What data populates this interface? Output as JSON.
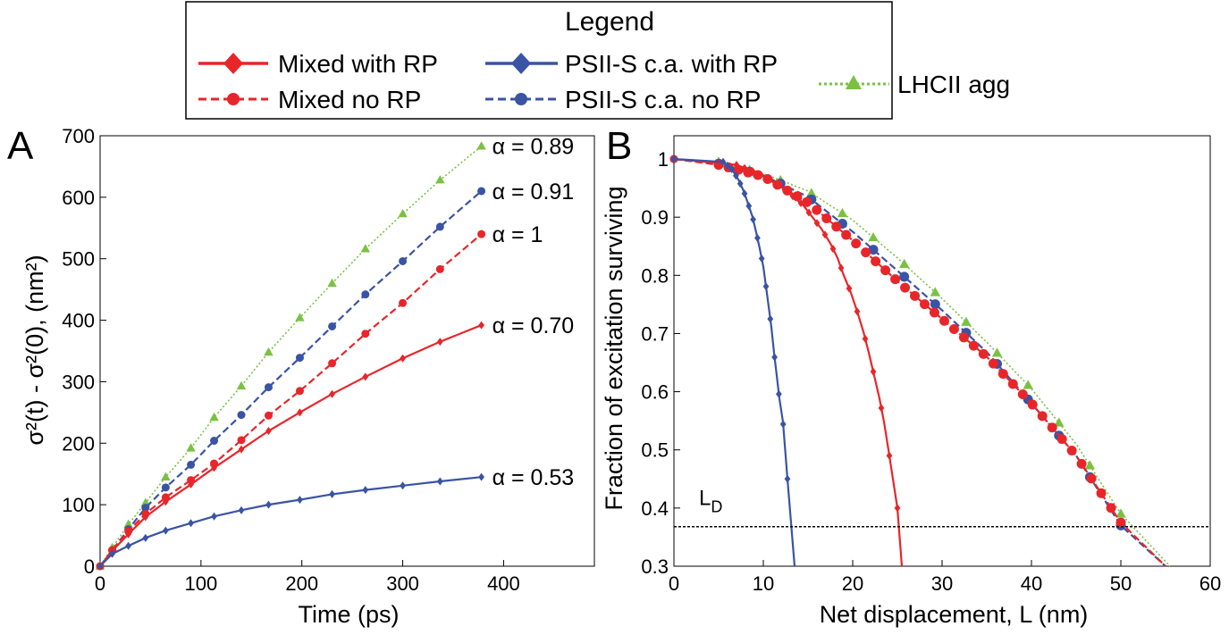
{
  "legend": {
    "title": "Legend",
    "entries": [
      {
        "label": "Mixed with RP",
        "color": "#e8262a",
        "dash": "solid",
        "marker": "diamond"
      },
      {
        "label": "PSII-S c.a. with RP",
        "color": "#3a54a4",
        "dash": "solid",
        "marker": "diamond"
      },
      {
        "label": "Mixed no RP",
        "color": "#e8262a",
        "dash": "dashed",
        "marker": "circle"
      },
      {
        "label": "PSII-S c.a. no RP",
        "color": "#3a54a4",
        "dash": "dashed",
        "marker": "circle"
      },
      {
        "label": "LHCII agg",
        "color": "#7ac142",
        "dash": "dotted",
        "marker": "triangle"
      }
    ]
  },
  "chart_data": [
    {
      "panel": "A",
      "type": "line",
      "xlabel": "Time (ps)",
      "ylabel": "σ²(t) - σ²(0), (nm²)",
      "xlim": [
        0,
        490
      ],
      "ylim": [
        0,
        700
      ],
      "xticks": [
        0,
        100,
        200,
        300,
        400
      ],
      "yticks": [
        0,
        100,
        200,
        300,
        400,
        500,
        600,
        700
      ],
      "series": [
        {
          "name": "LHCII agg",
          "annotation": "α = 0.89",
          "x": [
            0,
            12,
            28,
            45,
            65,
            90,
            113,
            140,
            167,
            198,
            230,
            263,
            300,
            337,
            378
          ],
          "y": [
            0,
            30,
            68,
            103,
            145,
            192,
            242,
            293,
            348,
            404,
            460,
            516,
            573,
            628,
            683
          ]
        },
        {
          "name": "PSII-S c.a. no RP",
          "annotation": "α = 0.91",
          "x": [
            0,
            12,
            28,
            45,
            65,
            90,
            113,
            140,
            167,
            198,
            230,
            263,
            300,
            337,
            378
          ],
          "y": [
            0,
            26,
            60,
            95,
            128,
            165,
            204,
            246,
            291,
            339,
            390,
            442,
            496,
            552,
            610
          ]
        },
        {
          "name": "Mixed no RP",
          "annotation": "α = 1",
          "x": [
            0,
            12,
            28,
            45,
            65,
            90,
            113,
            140,
            167,
            198,
            230,
            263,
            300,
            337,
            378
          ],
          "y": [
            0,
            26,
            57,
            85,
            112,
            140,
            167,
            205,
            245,
            285,
            330,
            378,
            428,
            483,
            540
          ]
        },
        {
          "name": "Mixed with RP",
          "annotation": "α = 0.70",
          "x": [
            0,
            12,
            28,
            45,
            65,
            90,
            113,
            140,
            167,
            198,
            230,
            263,
            300,
            337,
            378
          ],
          "y": [
            0,
            25,
            52,
            80,
            105,
            133,
            160,
            190,
            220,
            250,
            280,
            308,
            338,
            365,
            392
          ]
        },
        {
          "name": "PSII-S c.a. with RP",
          "annotation": "α = 0.53",
          "x": [
            0,
            12,
            28,
            45,
            65,
            90,
            113,
            140,
            167,
            198,
            230,
            263,
            300,
            337,
            378
          ],
          "y": [
            0,
            20,
            33,
            46,
            58,
            70,
            81,
            91,
            100,
            108,
            117,
            124,
            131,
            138,
            145
          ]
        }
      ]
    },
    {
      "panel": "B",
      "type": "line",
      "xlabel": "Net displacement, L (nm)",
      "ylabel": "Fraction of excitation surviving",
      "xlim": [
        0,
        60
      ],
      "ylim": [
        0.3,
        1.04
      ],
      "xticks": [
        0,
        10,
        20,
        30,
        40,
        50,
        60
      ],
      "yticks": [
        0.3,
        0.4,
        0.5,
        0.6,
        0.7,
        0.8,
        0.9,
        1
      ],
      "threshold": {
        "y": 0.368,
        "label": "L",
        "sub": "D"
      },
      "series": [
        {
          "name": "PSII-S c.a. with RP",
          "x": [
            0,
            5.5,
            6.5,
            7.2,
            7.8,
            8.3,
            8.8,
            9.2,
            9.6,
            10,
            10.3,
            10.6,
            10.9,
            11.2,
            11.5,
            11.8,
            12.2,
            12.7,
            13.5
          ],
          "y": [
            1,
            0.995,
            0.982,
            0.965,
            0.945,
            0.923,
            0.9,
            0.874,
            0.846,
            0.815,
            0.781,
            0.746,
            0.711,
            0.667,
            0.628,
            0.588,
            0.548,
            0.45,
            0.3
          ],
          "markers": 16
        },
        {
          "name": "Mixed with RP",
          "x": [
            0,
            7,
            9.5,
            11.5,
            13,
            14.5,
            15.5,
            16.5,
            17.5,
            18.3,
            19,
            19.8,
            20.5,
            21.2,
            21.8,
            22.4,
            23,
            23.5,
            24,
            24.5,
            25,
            25.5
          ],
          "y": [
            1,
            0.99,
            0.975,
            0.958,
            0.94,
            0.92,
            0.9,
            0.88,
            0.855,
            0.83,
            0.8,
            0.77,
            0.738,
            0.703,
            0.667,
            0.628,
            0.588,
            0.548,
            0.5,
            0.45,
            0.4,
            0.3
          ],
          "markers": 21
        },
        {
          "name": "Mixed no RP",
          "x": [
            0,
            5,
            10,
            15,
            20,
            25,
            30,
            35,
            40,
            45,
            50,
            55
          ],
          "y": [
            1,
            0.99,
            0.97,
            0.925,
            0.86,
            0.79,
            0.725,
            0.66,
            0.58,
            0.49,
            0.375,
            0.3
          ],
          "markers": 42
        },
        {
          "name": "PSII-S c.a. no RP",
          "x": [
            0,
            5,
            10,
            15,
            20,
            25,
            30,
            35,
            40,
            45,
            50,
            55
          ],
          "y": [
            1,
            0.992,
            0.972,
            0.935,
            0.875,
            0.808,
            0.74,
            0.668,
            0.58,
            0.49,
            0.37,
            0.3
          ],
          "markers": 14
        },
        {
          "name": "LHCII agg",
          "x": [
            0,
            5,
            10,
            15,
            20,
            25,
            30,
            35,
            40,
            45,
            50,
            55.5
          ],
          "y": [
            1,
            0.995,
            0.975,
            0.945,
            0.895,
            0.83,
            0.76,
            0.685,
            0.605,
            0.51,
            0.39,
            0.3
          ],
          "markers": 14
        }
      ]
    }
  ]
}
